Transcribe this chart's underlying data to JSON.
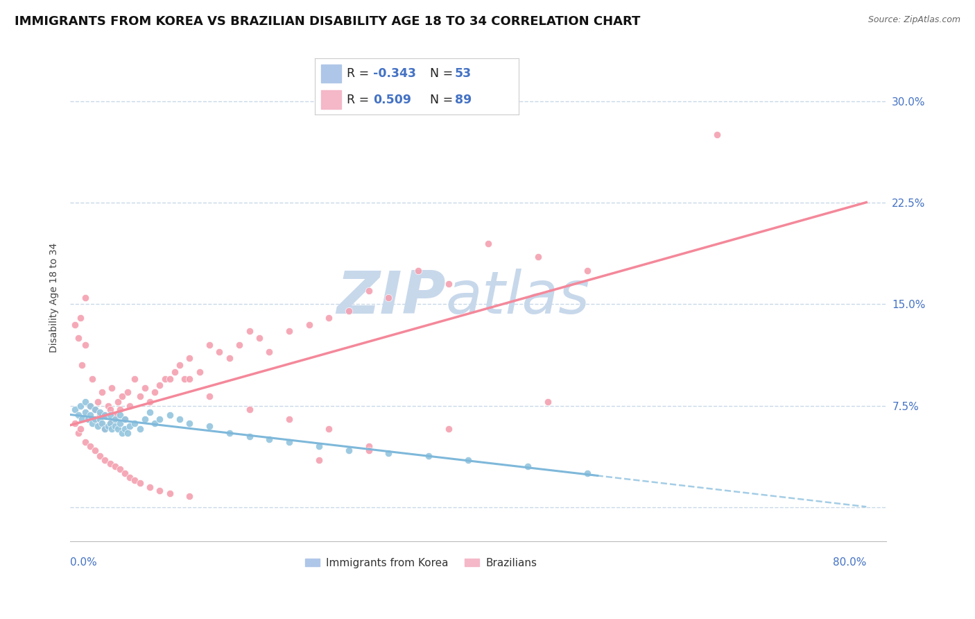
{
  "title": "IMMIGRANTS FROM KOREA VS BRAZILIAN DISABILITY AGE 18 TO 34 CORRELATION CHART",
  "source": "Source: ZipAtlas.com",
  "ylabel": "Disability Age 18 to 34",
  "korea_color": "#7eb8da",
  "brazil_color": "#f4889a",
  "korea_scatter_color": "#92c5de",
  "brazil_scatter_color": "#f4a0b0",
  "watermark_text": "ZIPatlas",
  "watermark_color": "#c8d8eb",
  "xlim": [
    0.0,
    0.82
  ],
  "ylim": [
    -0.025,
    0.335
  ],
  "yticks": [
    0.0,
    0.075,
    0.15,
    0.225,
    0.3
  ],
  "ytick_labels": [
    "",
    "7.5%",
    "15.0%",
    "22.5%",
    "30.0%"
  ],
  "background_color": "#ffffff",
  "grid_color": "#c8d8e8",
  "title_fontsize": 13,
  "axis_label_fontsize": 10,
  "tick_fontsize": 11,
  "legend_korea_r": "-0.343",
  "legend_korea_n": "53",
  "legend_brazil_r": "0.509",
  "legend_brazil_n": "89",
  "korea_x": [
    0.005,
    0.008,
    0.01,
    0.012,
    0.015,
    0.015,
    0.018,
    0.02,
    0.02,
    0.022,
    0.025,
    0.025,
    0.028,
    0.03,
    0.03,
    0.032,
    0.035,
    0.035,
    0.038,
    0.04,
    0.04,
    0.042,
    0.045,
    0.045,
    0.048,
    0.05,
    0.05,
    0.052,
    0.055,
    0.055,
    0.058,
    0.06,
    0.065,
    0.07,
    0.075,
    0.08,
    0.085,
    0.09,
    0.1,
    0.11,
    0.12,
    0.14,
    0.16,
    0.18,
    0.2,
    0.22,
    0.25,
    0.28,
    0.32,
    0.36,
    0.4,
    0.46,
    0.52
  ],
  "korea_y": [
    0.072,
    0.068,
    0.075,
    0.065,
    0.07,
    0.078,
    0.065,
    0.068,
    0.075,
    0.062,
    0.065,
    0.072,
    0.06,
    0.065,
    0.07,
    0.062,
    0.058,
    0.068,
    0.06,
    0.062,
    0.068,
    0.058,
    0.06,
    0.065,
    0.058,
    0.062,
    0.068,
    0.055,
    0.058,
    0.065,
    0.055,
    0.06,
    0.062,
    0.058,
    0.065,
    0.07,
    0.062,
    0.065,
    0.068,
    0.065,
    0.062,
    0.06,
    0.055,
    0.052,
    0.05,
    0.048,
    0.045,
    0.042,
    0.04,
    0.038,
    0.035,
    0.03,
    0.025
  ],
  "brazil_x": [
    0.005,
    0.008,
    0.01,
    0.012,
    0.015,
    0.015,
    0.018,
    0.02,
    0.022,
    0.025,
    0.025,
    0.028,
    0.03,
    0.03,
    0.032,
    0.035,
    0.035,
    0.038,
    0.04,
    0.04,
    0.042,
    0.045,
    0.048,
    0.05,
    0.052,
    0.055,
    0.058,
    0.06,
    0.065,
    0.07,
    0.075,
    0.08,
    0.085,
    0.09,
    0.095,
    0.1,
    0.105,
    0.11,
    0.115,
    0.12,
    0.13,
    0.14,
    0.15,
    0.16,
    0.17,
    0.18,
    0.19,
    0.2,
    0.22,
    0.24,
    0.26,
    0.28,
    0.3,
    0.32,
    0.35,
    0.38,
    0.42,
    0.47,
    0.52,
    0.12,
    0.14,
    0.18,
    0.22,
    0.26,
    0.3,
    0.005,
    0.008,
    0.01,
    0.015,
    0.02,
    0.025,
    0.03,
    0.035,
    0.04,
    0.045,
    0.05,
    0.055,
    0.06,
    0.065,
    0.07,
    0.08,
    0.09,
    0.1,
    0.12,
    0.65,
    0.48,
    0.38,
    0.3,
    0.25
  ],
  "brazil_y": [
    0.135,
    0.125,
    0.14,
    0.105,
    0.12,
    0.155,
    0.065,
    0.075,
    0.095,
    0.065,
    0.072,
    0.078,
    0.062,
    0.068,
    0.085,
    0.058,
    0.068,
    0.075,
    0.062,
    0.072,
    0.088,
    0.068,
    0.078,
    0.072,
    0.082,
    0.065,
    0.085,
    0.075,
    0.095,
    0.082,
    0.088,
    0.078,
    0.085,
    0.09,
    0.095,
    0.095,
    0.1,
    0.105,
    0.095,
    0.11,
    0.1,
    0.12,
    0.115,
    0.11,
    0.12,
    0.13,
    0.125,
    0.115,
    0.13,
    0.135,
    0.14,
    0.145,
    0.16,
    0.155,
    0.175,
    0.165,
    0.195,
    0.185,
    0.175,
    0.095,
    0.082,
    0.072,
    0.065,
    0.058,
    0.045,
    0.062,
    0.055,
    0.058,
    0.048,
    0.045,
    0.042,
    0.038,
    0.035,
    0.032,
    0.03,
    0.028,
    0.025,
    0.022,
    0.02,
    0.018,
    0.015,
    0.012,
    0.01,
    0.008,
    0.275,
    0.078,
    0.058,
    0.042,
    0.035
  ]
}
